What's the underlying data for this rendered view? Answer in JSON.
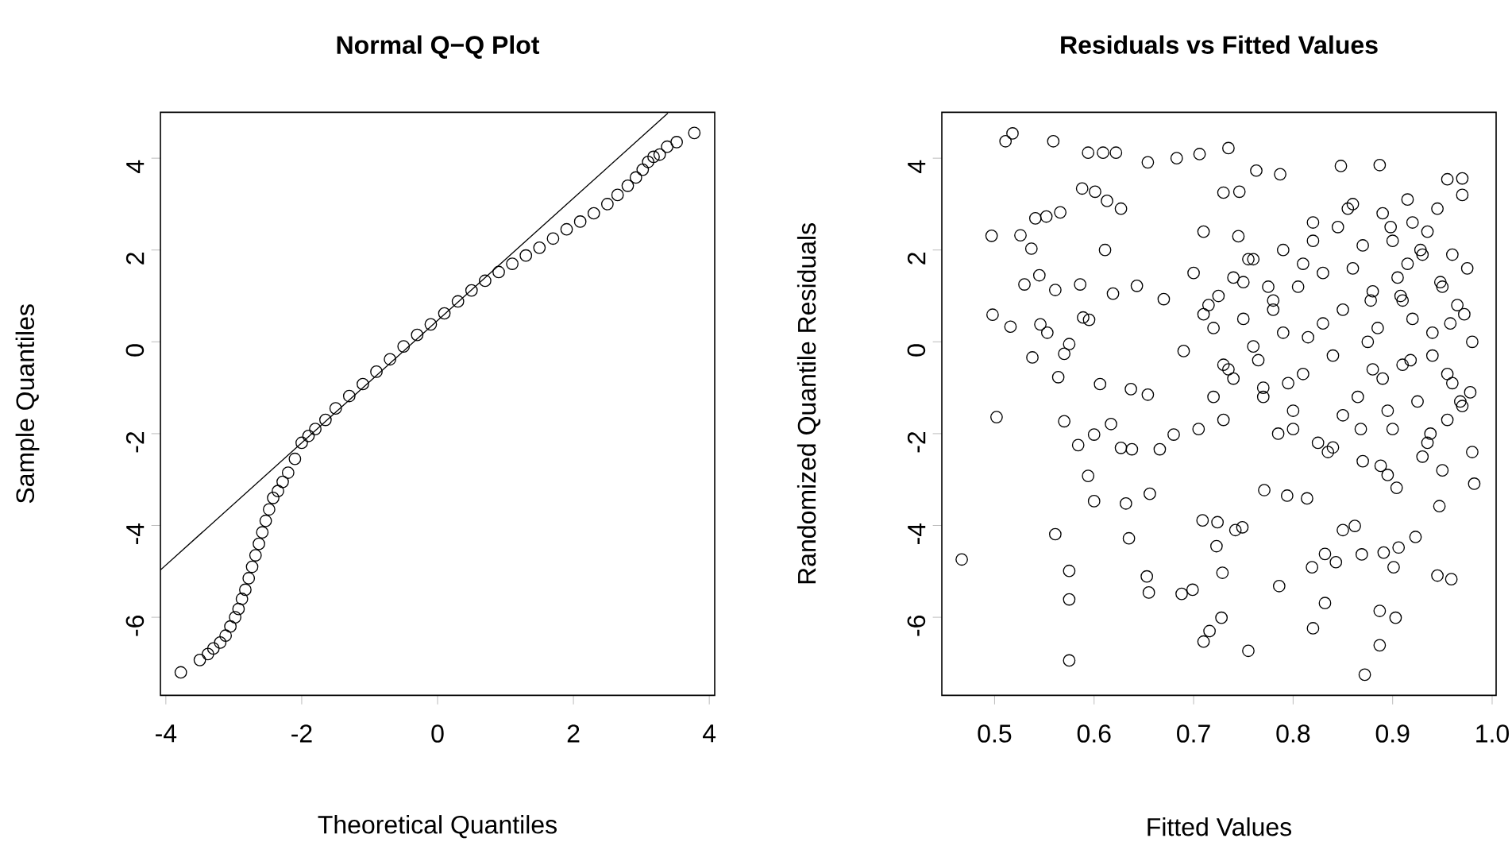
{
  "chart_data": [
    {
      "type": "scatter",
      "title": "Normal Q−Q Plot",
      "xlabel": "Theoretical Quantiles",
      "ylabel": "Sample Quantiles",
      "xlim": [
        -4.08,
        4.08
      ],
      "ylim": [
        -7.7,
        5.0
      ],
      "xticks": [
        -4,
        -2,
        0,
        2,
        4
      ],
      "yticks": [
        -6,
        -4,
        -2,
        0,
        2,
        4
      ],
      "marker": "circle",
      "series": [
        {
          "color": "#000000",
          "x": [
            -3.78,
            -3.5,
            -3.38,
            -3.3,
            -3.2,
            -3.12,
            -3.05,
            -2.98,
            -2.93,
            -2.88,
            -2.83,
            -2.78,
            -2.73,
            -2.68,
            -2.63,
            -2.58,
            -2.53,
            -2.48,
            -2.42,
            -2.35,
            -2.28,
            -2.2,
            -2.1,
            -2.0,
            -1.9,
            -1.8,
            -1.65,
            -1.5,
            -1.3,
            -1.1,
            -0.9,
            -0.7,
            -0.5,
            -0.3,
            -0.1,
            0.1,
            0.3,
            0.5,
            0.7,
            0.9,
            1.1,
            1.3,
            1.5,
            1.7,
            1.9,
            2.1,
            2.3,
            2.5,
            2.65,
            2.8,
            2.92,
            3.02,
            3.1,
            3.18,
            3.27,
            3.38,
            3.52,
            3.78
          ],
          "values": [
            -7.2,
            -6.93,
            -6.8,
            -6.68,
            -6.55,
            -6.4,
            -6.2,
            -6.0,
            -5.82,
            -5.6,
            -5.4,
            -5.15,
            -4.9,
            -4.65,
            -4.4,
            -4.15,
            -3.9,
            -3.65,
            -3.4,
            -3.25,
            -3.05,
            -2.85,
            -2.55,
            -2.2,
            -2.05,
            -1.9,
            -1.7,
            -1.45,
            -1.18,
            -0.92,
            -0.65,
            -0.38,
            -0.1,
            0.15,
            0.38,
            0.62,
            0.88,
            1.12,
            1.33,
            1.52,
            1.7,
            1.88,
            2.05,
            2.25,
            2.45,
            2.62,
            2.8,
            3.0,
            3.2,
            3.4,
            3.58,
            3.75,
            3.92,
            4.03,
            4.08,
            4.25,
            4.35,
            4.55
          ]
        },
        {
          "type": "line",
          "color": "#000000",
          "marker": "none",
          "x": [
            -4.08,
            3.39
          ],
          "values": [
            -4.97,
            4.98
          ]
        }
      ]
    },
    {
      "type": "scatter",
      "title": "Residuals vs Fitted Values",
      "xlabel": "Fitted Values",
      "ylabel": "Randomized Quantile Residuals",
      "xlim": [
        0.447,
        1.004
      ],
      "ylim": [
        -7.7,
        5.0
      ],
      "xticks": [
        0.5,
        0.6,
        0.7,
        0.8,
        0.9,
        {
          "value": 1.0,
          "label": "1.0"
        }
      ],
      "yticks": [
        -6,
        -4,
        -2,
        0,
        2,
        4
      ],
      "marker": "circle",
      "series": [
        {
          "color": "#000000",
          "x": [
            0.467,
            0.502,
            0.498,
            0.497,
            0.511,
            0.518,
            0.559,
            0.594,
            0.609,
            0.622,
            0.654,
            0.683,
            0.706,
            0.735,
            0.575,
            0.575,
            0.575,
            0.561,
            0.653,
            0.655,
            0.688,
            0.699,
            0.71,
            0.716,
            0.728,
            0.729,
            0.723,
            0.755,
            0.786,
            0.82,
            0.832,
            0.872,
            0.887,
            0.887,
            0.903,
            0.869,
            0.891,
            0.906,
            0.901,
            0.923,
            0.945,
            0.959,
            0.819,
            0.843,
            0.832,
            0.709,
            0.724,
            0.742,
            0.749,
            0.635,
            0.6,
            0.632,
            0.594,
            0.656,
            0.85,
            0.862,
            0.904,
            0.947,
            0.982,
            0.794,
            0.814,
            0.771,
            0.848,
            0.887,
            0.763,
            0.787,
            0.97,
            0.955,
            0.73,
            0.746,
            0.588,
            0.601,
            0.566,
            0.613,
            0.627,
            0.541,
            0.552,
            0.526,
            0.537,
            0.53,
            0.545,
            0.561,
            0.586,
            0.611,
            0.589,
            0.595,
            0.546,
            0.553,
            0.516,
            0.538,
            0.564,
            0.57,
            0.575,
            0.606,
            0.57,
            0.584,
            0.6,
            0.617,
            0.627,
            0.638,
            0.666,
            0.68,
            0.637,
            0.654,
            0.619,
            0.643,
            0.67,
            0.7,
            0.72,
            0.74,
            0.76,
            0.78,
            0.8,
            0.82,
            0.84,
            0.86,
            0.88,
            0.9,
            0.92,
            0.94,
            0.96,
            0.975,
            0.98,
            0.97,
            0.95,
            0.93,
            0.91,
            0.89,
            0.87,
            0.85,
            0.83,
            0.81,
            0.79,
            0.77,
            0.75,
            0.73,
            0.71,
            0.69,
            0.705,
            0.725,
            0.745,
            0.765,
            0.785,
            0.805,
            0.825,
            0.845,
            0.865,
            0.885,
            0.905,
            0.925,
            0.945,
            0.965,
            0.98,
            0.955,
            0.935,
            0.915,
            0.895,
            0.71,
            0.73,
            0.75,
            0.77,
            0.79,
            0.81,
            0.83,
            0.85,
            0.87,
            0.89,
            0.91,
            0.93,
            0.95,
            0.97,
            0.72,
            0.74,
            0.76,
            0.78,
            0.8,
            0.82,
            0.84,
            0.86,
            0.88,
            0.9,
            0.92,
            0.94,
            0.96,
            0.978,
            0.715,
            0.735,
            0.755,
            0.775,
            0.795,
            0.815,
            0.835,
            0.855,
            0.875,
            0.895,
            0.915,
            0.935,
            0.955,
            0.972,
            0.868,
            0.878,
            0.888,
            0.898,
            0.908,
            0.918,
            0.928,
            0.938,
            0.948,
            0.958,
            0.968
          ],
          "values": [
            -4.74,
            -1.64,
            0.59,
            2.31,
            4.37,
            4.54,
            4.37,
            4.12,
            4.12,
            4.12,
            3.91,
            4.0,
            4.09,
            4.22,
            -6.94,
            -5.61,
            -4.99,
            -4.19,
            -5.11,
            -5.46,
            -5.49,
            -5.4,
            -6.53,
            -6.3,
            -6.01,
            -5.03,
            -4.45,
            -6.73,
            -5.32,
            -6.24,
            -5.69,
            -7.25,
            -6.61,
            -5.86,
            -6.01,
            -4.63,
            -4.59,
            -4.48,
            -4.91,
            -4.25,
            -5.09,
            -5.17,
            -4.91,
            -4.8,
            -4.62,
            -3.89,
            -3.93,
            -4.1,
            -4.04,
            -4.28,
            -3.47,
            -3.52,
            -2.92,
            -3.31,
            -4.1,
            -4.01,
            -3.18,
            -3.58,
            -3.09,
            -3.35,
            -3.41,
            -3.23,
            3.83,
            3.85,
            3.73,
            3.65,
            3.56,
            3.54,
            3.25,
            3.27,
            3.34,
            3.27,
            2.82,
            3.07,
            2.9,
            2.69,
            2.73,
            2.32,
            2.03,
            1.25,
            1.45,
            1.13,
            1.25,
            2.0,
            0.53,
            0.48,
            0.38,
            0.2,
            0.33,
            -0.34,
            -0.77,
            -0.26,
            -0.05,
            -0.92,
            -1.73,
            -2.25,
            -2.02,
            -1.79,
            -2.31,
            -2.34,
            -2.34,
            -2.02,
            -1.03,
            -1.15,
            1.05,
            1.22,
            0.93,
            1.5,
            0.3,
            -0.8,
            1.8,
            0.9,
            -1.5,
            2.2,
            -0.3,
            3.0,
            1.1,
            -1.9,
            2.6,
            0.2,
            -0.9,
            1.6,
            -2.4,
            3.2,
            -2.8,
            1.9,
            -0.5,
            2.8,
            -2.6,
            0.7,
            1.5,
            -0.7,
            2.0,
            -1.2,
            0.5,
            -1.7,
            2.4,
            -0.2,
            -1.9,
            1.0,
            2.3,
            -0.4,
            -2.0,
            1.2,
            -2.2,
            2.5,
            -1.2,
            0.3,
            1.4,
            -1.3,
            2.9,
            0.8,
            0.0,
            -1.7,
            -2.2,
            3.1,
            -2.9,
            0.6,
            -0.5,
            1.3,
            -1.0,
            0.2,
            1.7,
            0.4,
            -1.6,
            2.1,
            -0.8,
            0.9,
            -2.5,
            1.2,
            -1.4,
            -1.2,
            1.4,
            -0.1,
            0.7,
            -1.9,
            2.6,
            -2.3,
            1.6,
            -0.6,
            2.2,
            0.5,
            -0.3,
            1.9,
            -1.1,
            0.8,
            -0.6,
            1.8,
            1.2,
            -0.9,
            0.1,
            -2.4,
            2.9,
            0.0,
            -1.5,
            1.7,
            2.4,
            -0.7,
            0.6,
            -1.9,
            0.9,
            -2.7,
            2.5,
            1.0,
            -0.4,
            2.0,
            -2.0,
            1.3,
            0.4,
            -1.3
          ]
        }
      ]
    }
  ]
}
